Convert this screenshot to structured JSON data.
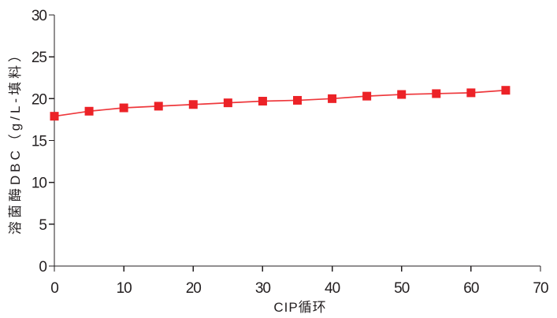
{
  "chart_data": {
    "type": "line",
    "title": "",
    "xlabel": "CIP循环",
    "ylabel": "溶菌酶DBC（g/L-填料）",
    "x": [
      0,
      5,
      10,
      15,
      20,
      25,
      30,
      35,
      40,
      45,
      50,
      55,
      60,
      65
    ],
    "series": [
      {
        "name": "溶菌酶DBC",
        "values": [
          17.9,
          18.5,
          18.9,
          19.1,
          19.3,
          19.5,
          19.7,
          19.8,
          20.0,
          20.3,
          20.5,
          20.6,
          20.7,
          21.0
        ],
        "color": "#ec2227",
        "marker": "square"
      }
    ],
    "xlim": [
      0,
      70
    ],
    "ylim": [
      0,
      30
    ],
    "xticks": [
      0,
      10,
      20,
      30,
      40,
      50,
      60,
      70
    ],
    "yticks": [
      0,
      5,
      10,
      15,
      20,
      25,
      30
    ],
    "grid": false,
    "legend": "none"
  },
  "colors": {
    "axis": "#231f20",
    "background": "#ffffff",
    "series": "#ec2227"
  }
}
